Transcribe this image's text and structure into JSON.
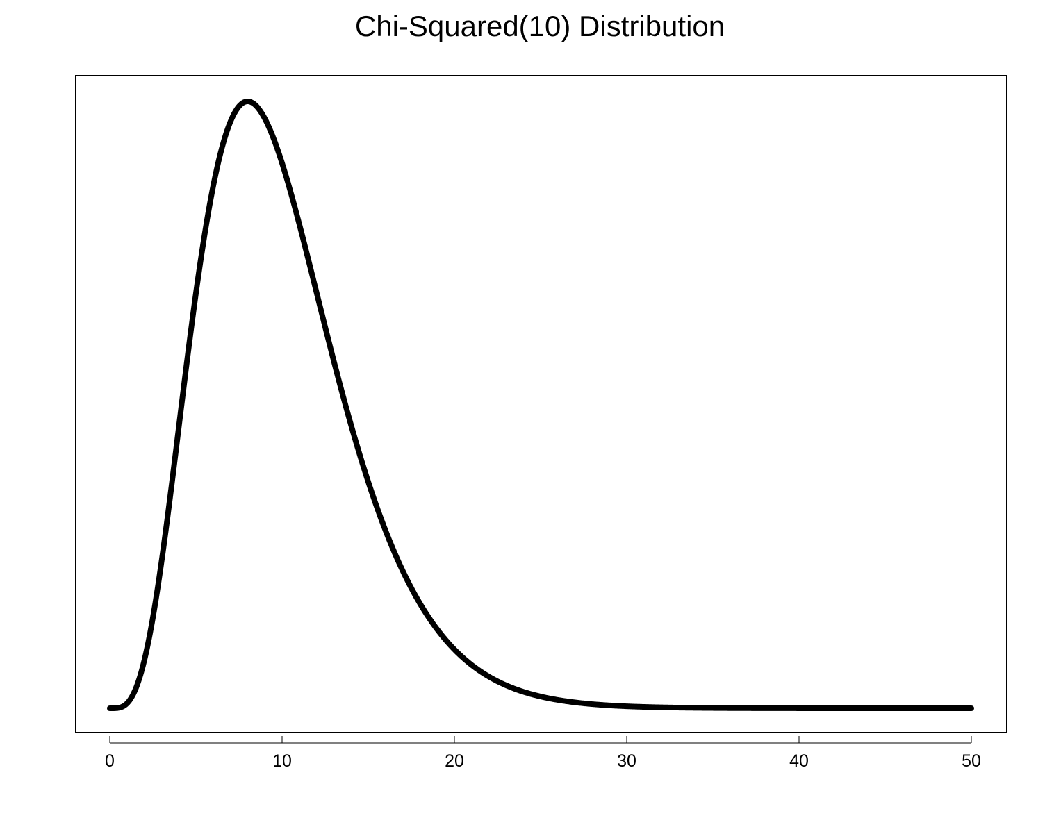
{
  "chart_data": {
    "type": "line",
    "title": "Chi-Squared(10) Distribution",
    "xlabel": "",
    "ylabel": "",
    "xlim": [
      0,
      50
    ],
    "ylim": [
      0,
      0.1
    ],
    "x_ticks": [
      0,
      10,
      20,
      30,
      40,
      50
    ],
    "x_tick_labels": [
      "0",
      "10",
      "20",
      "30",
      "40",
      "50"
    ],
    "y_axis_shown": false,
    "grid": false,
    "legend": "none",
    "line_color": "#000000",
    "series": [
      {
        "distribution": "chi-squared",
        "degrees_of_freedom": 10,
        "x_start": 0,
        "x_end": 50,
        "peak": {
          "x": 8,
          "y": 0.0977
        }
      }
    ]
  }
}
